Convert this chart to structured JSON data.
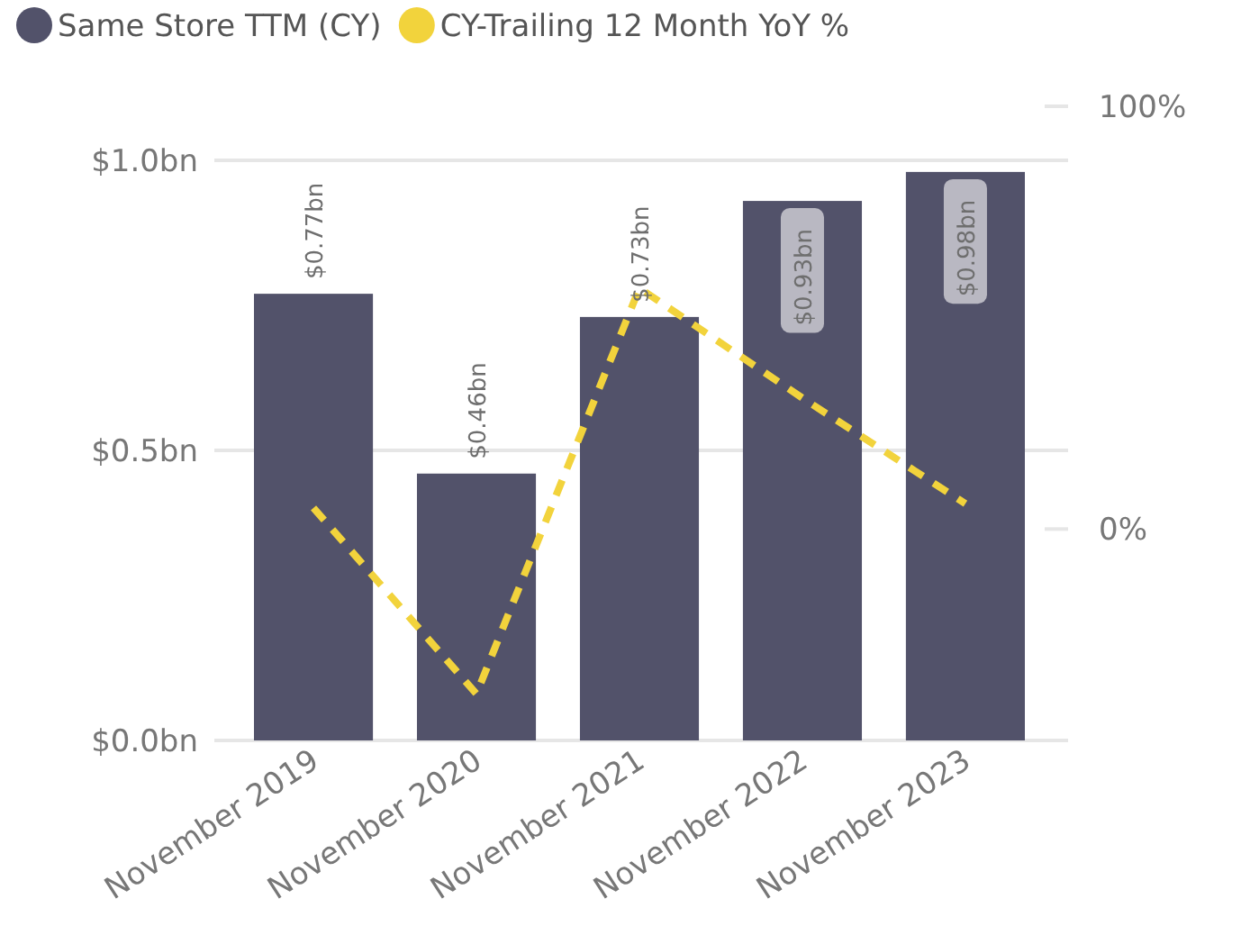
{
  "chart_data": {
    "type": "bar",
    "categories": [
      "November 2019",
      "November 2020",
      "November 2021",
      "November 2022",
      "November 2023"
    ],
    "series": [
      {
        "name": "Same Store TTM (CY)",
        "color": "#52526a",
        "values": [
          0.77,
          0.46,
          0.73,
          0.93,
          0.98
        ],
        "value_labels": [
          "$0.77bn",
          "$0.46bn",
          "$0.73bn",
          "$0.93bn",
          "$0.98bn"
        ]
      },
      {
        "name": "CY-Trailing 12 Month YoY %",
        "type": "line",
        "axis": "y2",
        "color": "#f2d33c",
        "line_style": "dashed",
        "values": [
          5,
          -39,
          57,
          31,
          6
        ]
      }
    ],
    "ylim": [
      0,
      1
    ],
    "yticks": [
      {
        "value": 0,
        "label": "$0.0bn"
      },
      {
        "value": 0.5,
        "label": "$0.5bn"
      },
      {
        "value": 1,
        "label": "$1.0bn"
      }
    ],
    "y2lim": [
      -50,
      100
    ],
    "y2ticks": [
      {
        "value": 0,
        "label": "0%"
      },
      {
        "value": 100,
        "label": "100%"
      }
    ],
    "grid": "y",
    "legend": "top left"
  }
}
